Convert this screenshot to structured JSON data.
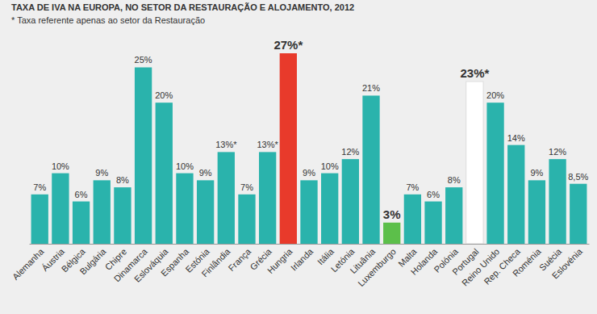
{
  "chart_data": {
    "type": "bar",
    "title": "TAXA DE IVA NA EUROPA, NO SETOR DA RESTAURAÇÃO E ALOJAMENTO, 2012",
    "subtitle": "* Taxa referente apenas ao setor da Restauração",
    "categories": [
      "Alemanha",
      "Áustria",
      "Bélgica",
      "Bulgária",
      "Chipre",
      "Dinamarca",
      "Eslováquia",
      "Espanha",
      "Estónia",
      "Finlândia",
      "França",
      "Grécia",
      "Hungria",
      "Irlanda",
      "Itália",
      "Letónia",
      "Lituânia",
      "Luxemburgo",
      "Malta",
      "Holanda",
      "Polónia",
      "Portugal",
      "Reino Unido",
      "Rep. Checa",
      "Roménia",
      "Suécia",
      "Eslovénia"
    ],
    "values": [
      7,
      10,
      6,
      9,
      8,
      25,
      20,
      10,
      9,
      13,
      7,
      13,
      27,
      9,
      10,
      12,
      21,
      3,
      7,
      6,
      8,
      23,
      20,
      14,
      9,
      12,
      8.5
    ],
    "value_labels": [
      "7%",
      "10%",
      "6%",
      "9%",
      "8%",
      "25%",
      "20%",
      "10%",
      "9%",
      "13%*",
      "7%",
      "13%*",
      "27%*",
      "9%",
      "10%",
      "12%",
      "21%",
      "3%",
      "7%",
      "6%",
      "8%",
      "23%*",
      "20%",
      "14%",
      "9%",
      "12%",
      "8,5%"
    ],
    "colors": [
      "#2ab3ac",
      "#2ab3ac",
      "#2ab3ac",
      "#2ab3ac",
      "#2ab3ac",
      "#2ab3ac",
      "#2ab3ac",
      "#2ab3ac",
      "#2ab3ac",
      "#2ab3ac",
      "#2ab3ac",
      "#2ab3ac",
      "#e83a2b",
      "#2ab3ac",
      "#2ab3ac",
      "#2ab3ac",
      "#2ab3ac",
      "#5cbf4a",
      "#2ab3ac",
      "#2ab3ac",
      "#2ab3ac",
      "#ffffff",
      "#2ab3ac",
      "#2ab3ac",
      "#2ab3ac",
      "#2ab3ac",
      "#2ab3ac"
    ],
    "ylim": [
      0,
      27
    ],
    "data_labels": true,
    "tick_labels": "x"
  }
}
